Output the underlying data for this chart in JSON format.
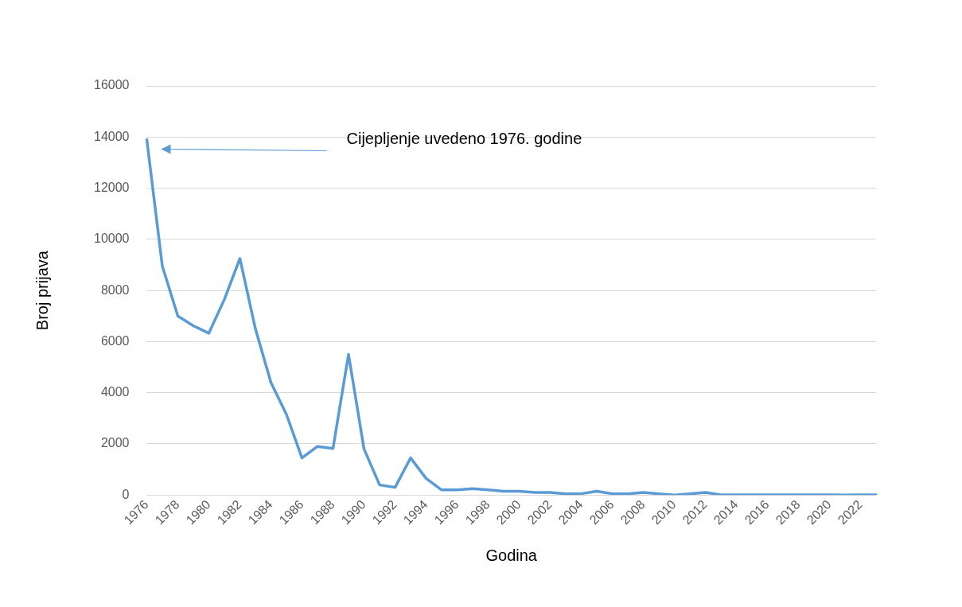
{
  "chart_data": {
    "type": "line",
    "xlabel": "Godina",
    "ylabel": "Broj prijava",
    "categories": [
      "1976",
      null,
      "1978",
      null,
      "1980",
      null,
      "1982",
      null,
      "1984",
      null,
      "1986",
      null,
      "1988",
      null,
      "1990",
      null,
      "1992",
      null,
      "1994",
      null,
      "1996",
      null,
      "1998",
      null,
      "2000",
      null,
      "2002",
      null,
      "2004",
      null,
      "2006",
      null,
      "2008",
      null,
      "2010",
      null,
      "2012",
      null,
      "2014",
      null,
      "2016",
      null,
      "2018",
      null,
      "2020",
      null,
      "2022",
      null
    ],
    "series": [
      {
        "color": "#5b9bd5",
        "values": [
          13900,
          8950,
          7000,
          6620,
          6330,
          7650,
          9250,
          6500,
          4400,
          3150,
          1450,
          1900,
          1820,
          5500,
          1800,
          400,
          300,
          1450,
          650,
          200,
          200,
          250,
          200,
          150,
          150,
          100,
          100,
          50,
          50,
          150,
          50,
          50,
          100,
          50,
          0,
          50,
          100,
          10,
          10,
          10,
          10,
          10,
          10,
          10,
          10,
          0,
          10,
          10
        ]
      }
    ],
    "ylim": [
      0,
      16000
    ],
    "yticks": [
      0,
      2000,
      4000,
      6000,
      8000,
      10000,
      12000,
      14000,
      16000
    ],
    "grid": "y",
    "legend": false,
    "marker": "none",
    "line_style": "solid",
    "annotations": [
      "Cijepljenje uvedeno 1976. godine"
    ]
  }
}
